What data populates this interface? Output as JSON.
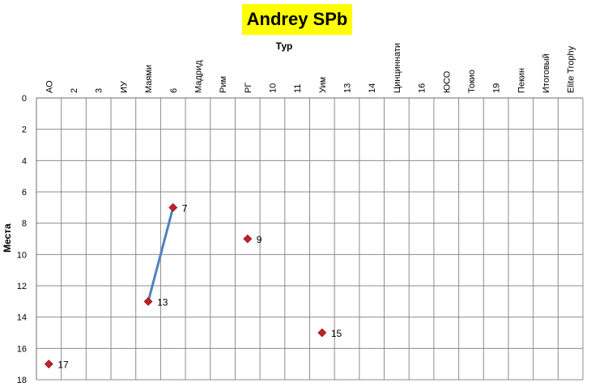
{
  "chart_data": {
    "type": "line",
    "title": "Andrey SPb",
    "xlabel": "Тур",
    "ylabel": "Места",
    "ylim": [
      0,
      18
    ],
    "y_inverted": true,
    "y_ticks": [
      0,
      2,
      4,
      6,
      8,
      10,
      12,
      14,
      16,
      18
    ],
    "grid": true,
    "categories": [
      "АО",
      "2",
      "3",
      "ИУ",
      "Маями",
      "6",
      "Мадрид",
      "Рим",
      "РГ",
      "10",
      "11",
      "Уим",
      "13",
      "14",
      "Цинциннати",
      "16",
      "ЮСО",
      "Токио",
      "19",
      "Пекин",
      "Итоговый",
      "Elite Trophy"
    ],
    "series": [
      {
        "values": [
          17,
          null,
          null,
          null,
          13,
          7,
          null,
          null,
          9,
          null,
          null,
          15,
          null,
          null,
          null,
          null,
          null,
          null,
          null,
          null,
          null,
          null
        ],
        "line_color": "#4f81bd",
        "marker_color": "#c0202a",
        "marker": "diamond"
      }
    ]
  }
}
